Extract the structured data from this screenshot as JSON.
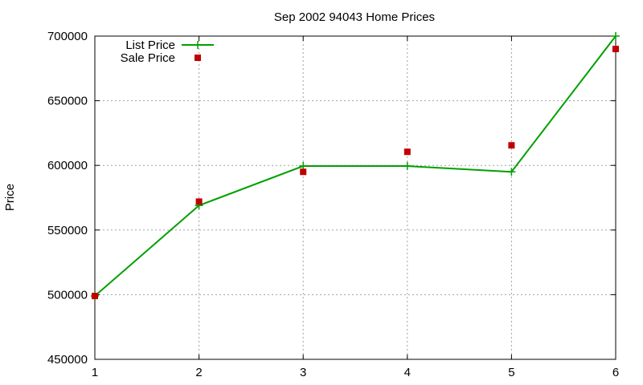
{
  "chart_data": {
    "type": "line",
    "title": "Sep 2002 94043 Home Prices",
    "xlabel": "",
    "ylabel": "Price",
    "xlim": [
      1,
      6
    ],
    "ylim": [
      450000,
      700000
    ],
    "x_ticks": [
      "1",
      "2",
      "3",
      "4",
      "5",
      "6"
    ],
    "y_ticks": [
      "450000",
      "500000",
      "550000",
      "600000",
      "650000",
      "700000"
    ],
    "x": [
      1,
      2,
      3,
      4,
      5,
      6
    ],
    "grid": true,
    "legend_position": "top-left",
    "series": [
      {
        "name": "List Price",
        "kind": "line-points",
        "marker": "plus",
        "color": "#00a000",
        "values": [
          499000,
          569000,
          599500,
          599500,
          595000,
          700000
        ]
      },
      {
        "name": "Sale Price",
        "kind": "points",
        "marker": "square",
        "color": "#c00000",
        "values": [
          499000,
          572000,
          595000,
          610500,
          615500,
          690000
        ]
      }
    ]
  }
}
